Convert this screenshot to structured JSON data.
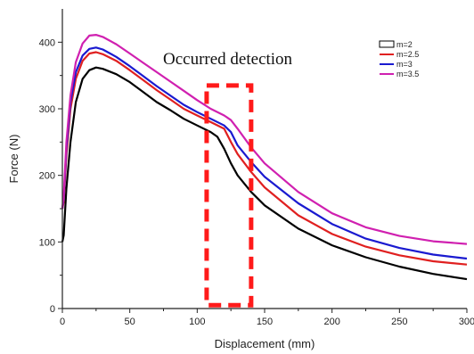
{
  "chart_data": {
    "type": "line",
    "title": "",
    "xlabel": "Displacement (mm)",
    "ylabel": "Force (N)",
    "xlim": [
      0,
      300
    ],
    "ylim": [
      0,
      450
    ],
    "xticks": [
      "0",
      "50",
      "100",
      "150",
      "200",
      "250",
      "300"
    ],
    "yticks": [
      "0",
      "100",
      "200",
      "300",
      "400"
    ],
    "grid": false,
    "legend_position": "top-right",
    "series": [
      {
        "name": "m=2",
        "color": "#000000",
        "x": [
          0,
          1,
          3,
          6,
          10,
          15,
          20,
          25,
          30,
          40,
          50,
          60,
          70,
          80,
          90,
          100,
          110,
          115,
          120,
          125,
          130,
          140,
          150,
          175,
          200,
          225,
          250,
          275,
          300
        ],
        "y": [
          100,
          110,
          180,
          250,
          310,
          345,
          358,
          362,
          360,
          352,
          340,
          325,
          310,
          298,
          285,
          275,
          265,
          258,
          240,
          218,
          200,
          175,
          155,
          120,
          95,
          77,
          63,
          52,
          44
        ]
      },
      {
        "name": "m=2.5",
        "color": "#e02020",
        "x": [
          0,
          1,
          3,
          6,
          10,
          15,
          20,
          25,
          30,
          40,
          50,
          60,
          70,
          80,
          90,
          100,
          110,
          120,
          125,
          130,
          140,
          150,
          175,
          200,
          225,
          250,
          275,
          300
        ],
        "y": [
          150,
          160,
          230,
          300,
          345,
          372,
          383,
          385,
          382,
          372,
          358,
          343,
          328,
          314,
          300,
          290,
          280,
          270,
          250,
          232,
          205,
          182,
          140,
          112,
          93,
          80,
          71,
          66
        ]
      },
      {
        "name": "m=3",
        "color": "#1a1ad0",
        "x": [
          0,
          1,
          3,
          6,
          10,
          15,
          20,
          25,
          30,
          40,
          50,
          60,
          70,
          80,
          90,
          100,
          110,
          120,
          125,
          130,
          140,
          150,
          175,
          200,
          225,
          250,
          275,
          300
        ],
        "y": [
          150,
          165,
          240,
          310,
          355,
          380,
          390,
          392,
          389,
          378,
          364,
          349,
          334,
          320,
          306,
          295,
          285,
          275,
          265,
          245,
          220,
          198,
          158,
          127,
          105,
          91,
          81,
          75
        ]
      },
      {
        "name": "m=3.5",
        "color": "#d020b0",
        "x": [
          0,
          1,
          3,
          6,
          10,
          15,
          20,
          25,
          30,
          40,
          50,
          60,
          70,
          80,
          90,
          100,
          110,
          120,
          125,
          130,
          140,
          150,
          175,
          200,
          225,
          250,
          275,
          300
        ],
        "y": [
          150,
          170,
          250,
          320,
          370,
          398,
          410,
          411,
          408,
          397,
          383,
          369,
          355,
          341,
          327,
          313,
          300,
          290,
          283,
          270,
          242,
          218,
          175,
          143,
          122,
          109,
          101,
          97
        ]
      }
    ],
    "annotations": [
      {
        "text": "Occurred detection",
        "region": {
          "x_range": [
            107,
            140
          ],
          "y_range": [
            5,
            335
          ]
        },
        "box_color": "#ff1a1a",
        "box_style": "dashed"
      }
    ]
  }
}
